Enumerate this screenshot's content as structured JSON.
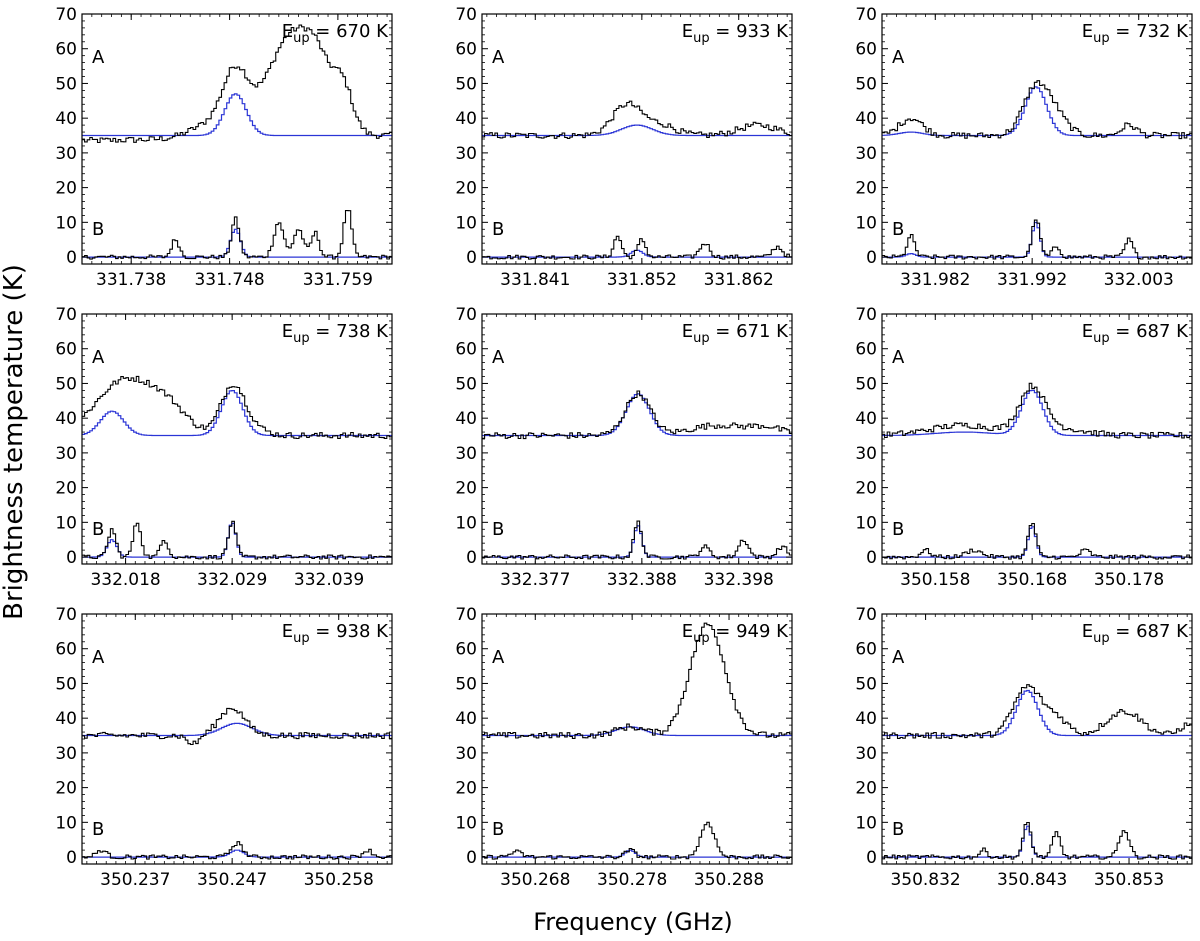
{
  "figure": {
    "ylabel": "Brightness temperature (K)",
    "xlabel": "Frequency (GHz)"
  },
  "colors": {
    "observed": "#000000",
    "model": "#2b35d6",
    "axis": "#000000"
  },
  "chart_data": {
    "type": "line",
    "layout": "3x3 grid of spectra",
    "ylim": [
      -2,
      70
    ],
    "yticks": [
      0,
      10,
      20,
      30,
      40,
      50,
      60,
      70
    ],
    "trace_labels": [
      "A",
      "B"
    ],
    "series_names": [
      "observed spectrum",
      "model"
    ],
    "panels": [
      {
        "eup_prefix": "E",
        "eup_sub": "up",
        "eup_value": " = 670 K",
        "xticks": [
          331.738,
          331.748,
          331.759
        ],
        "xtick_labels": [
          "331.738",
          "331.748",
          "331.759"
        ],
        "xlim": [
          331.733,
          331.7645
        ],
        "baseline_A": 35,
        "model_A": [
          {
            "center": 331.7486,
            "amp": 12,
            "width": 0.0011
          }
        ],
        "observed_A": [
          {
            "center": 331.7486,
            "amp": 17,
            "width": 0.0013
          },
          {
            "center": 331.7545,
            "amp": 30,
            "width": 0.0026
          },
          {
            "center": 331.7595,
            "amp": 12,
            "width": 0.001
          },
          {
            "center": 331.757,
            "amp": 8,
            "width": 0.0012
          },
          {
            "center": 331.746,
            "amp": 4,
            "width": 0.002
          }
        ],
        "observed_A_slope": -1.5,
        "model_B": [
          {
            "center": 331.7486,
            "amp": 8,
            "width": 0.0005
          }
        ],
        "observed_B": [
          {
            "center": 331.7486,
            "amp": 11,
            "width": 0.0004
          },
          {
            "center": 331.7425,
            "amp": 5,
            "width": 0.0004
          },
          {
            "center": 331.753,
            "amp": 10,
            "width": 0.0005
          },
          {
            "center": 331.755,
            "amp": 8,
            "width": 0.0005
          },
          {
            "center": 331.7567,
            "amp": 7,
            "width": 0.0004
          },
          {
            "center": 331.76,
            "amp": 14,
            "width": 0.0004
          }
        ]
      },
      {
        "eup_prefix": "E",
        "eup_sub": "up",
        "eup_value": " = 933 K",
        "xticks": [
          331.841,
          331.852,
          331.862
        ],
        "xtick_labels": [
          "331.841",
          "331.852",
          "331.862"
        ],
        "xlim": [
          331.8355,
          331.8675
        ],
        "baseline_A": 35,
        "model_A": [
          {
            "center": 331.8515,
            "amp": 3,
            "width": 0.0016
          }
        ],
        "observed_A": [
          {
            "center": 331.8505,
            "amp": 9,
            "width": 0.0015
          },
          {
            "center": 331.854,
            "amp": 3,
            "width": 0.0015
          },
          {
            "center": 331.864,
            "amp": 3,
            "width": 0.002
          }
        ],
        "observed_A_slope": 0,
        "model_B": [
          {
            "center": 331.8515,
            "amp": 2,
            "width": 0.0006
          }
        ],
        "observed_B": [
          {
            "center": 331.8495,
            "amp": 6,
            "width": 0.0004
          },
          {
            "center": 331.852,
            "amp": 5,
            "width": 0.0004
          },
          {
            "center": 331.8585,
            "amp": 4,
            "width": 0.0005
          },
          {
            "center": 331.866,
            "amp": 3,
            "width": 0.0005
          }
        ]
      },
      {
        "eup_prefix": "E",
        "eup_sub": "up",
        "eup_value": " = 732 K",
        "xticks": [
          331.982,
          331.992,
          332.003
        ],
        "xtick_labels": [
          "331.982",
          "331.992",
          "332.003"
        ],
        "xlim": [
          331.9765,
          332.0085
        ],
        "baseline_A": 35,
        "model_A": [
          {
            "center": 331.9924,
            "amp": 14,
            "width": 0.0011
          },
          {
            "center": 331.9795,
            "amp": 1,
            "width": 0.0012
          }
        ],
        "observed_A": [
          {
            "center": 331.9924,
            "amp": 14,
            "width": 0.0013
          },
          {
            "center": 331.9945,
            "amp": 5,
            "width": 0.0012
          },
          {
            "center": 331.9795,
            "amp": 5,
            "width": 0.0012
          },
          {
            "center": 332.002,
            "amp": 3,
            "width": 0.0008
          }
        ],
        "observed_A_slope": 0,
        "model_B": [
          {
            "center": 331.9924,
            "amp": 10,
            "width": 0.0004
          },
          {
            "center": 331.9795,
            "amp": 1,
            "width": 0.0005
          }
        ],
        "observed_B": [
          {
            "center": 331.9924,
            "amp": 11,
            "width": 0.0004
          },
          {
            "center": 331.9795,
            "amp": 6,
            "width": 0.0004
          },
          {
            "center": 331.9945,
            "amp": 3,
            "width": 0.0004
          },
          {
            "center": 332.002,
            "amp": 5,
            "width": 0.0004
          }
        ]
      },
      {
        "eup_prefix": "E",
        "eup_sub": "up",
        "eup_value": " = 738 K",
        "xticks": [
          332.018,
          332.029,
          332.039
        ],
        "xtick_labels": [
          "332.018",
          "332.029",
          "332.039"
        ],
        "xlim": [
          332.0135,
          332.0455
        ],
        "baseline_A": 35,
        "model_A": [
          {
            "center": 332.0166,
            "amp": 7,
            "width": 0.0012
          },
          {
            "center": 332.029,
            "amp": 13,
            "width": 0.0011
          }
        ],
        "observed_A": [
          {
            "center": 332.018,
            "amp": 16,
            "width": 0.003
          },
          {
            "center": 332.0225,
            "amp": 6,
            "width": 0.002
          },
          {
            "center": 332.029,
            "amp": 13,
            "width": 0.0012
          },
          {
            "center": 332.0305,
            "amp": 3,
            "width": 0.0015
          }
        ],
        "observed_A_slope": 0,
        "model_B": [
          {
            "center": 332.0166,
            "amp": 5,
            "width": 0.0005
          },
          {
            "center": 332.029,
            "amp": 10,
            "width": 0.0004
          }
        ],
        "observed_B": [
          {
            "center": 332.0166,
            "amp": 8,
            "width": 0.0004
          },
          {
            "center": 332.0192,
            "amp": 10,
            "width": 0.0004
          },
          {
            "center": 332.022,
            "amp": 5,
            "width": 0.0004
          },
          {
            "center": 332.029,
            "amp": 10,
            "width": 0.0004
          }
        ]
      },
      {
        "eup_prefix": "E",
        "eup_sub": "up",
        "eup_value": " = 671 K",
        "xticks": [
          332.377,
          332.388,
          332.398
        ],
        "xtick_labels": [
          "332.377",
          "332.388",
          "332.398"
        ],
        "xlim": [
          332.3715,
          332.4035
        ],
        "baseline_A": 35,
        "model_A": [
          {
            "center": 332.3876,
            "amp": 12,
            "width": 0.0012
          }
        ],
        "observed_A": [
          {
            "center": 332.3876,
            "amp": 12,
            "width": 0.0013
          },
          {
            "center": 332.396,
            "amp": 3,
            "width": 0.003
          },
          {
            "center": 332.401,
            "amp": 2,
            "width": 0.0015
          }
        ],
        "observed_A_slope": 0,
        "model_B": [
          {
            "center": 332.3876,
            "amp": 9,
            "width": 0.0004
          }
        ],
        "observed_B": [
          {
            "center": 332.3876,
            "amp": 10,
            "width": 0.0004
          },
          {
            "center": 332.3945,
            "amp": 3,
            "width": 0.0005
          },
          {
            "center": 332.3985,
            "amp": 5,
            "width": 0.0005
          },
          {
            "center": 332.4025,
            "amp": 3,
            "width": 0.0005
          }
        ]
      },
      {
        "eup_prefix": "E",
        "eup_sub": "up",
        "eup_value": " = 687 K",
        "xticks": [
          350.158,
          350.168,
          350.178
        ],
        "xtick_labels": [
          "350.158",
          "350.168",
          "350.178"
        ],
        "xlim": [
          350.1525,
          350.1845
        ],
        "baseline_A": 35,
        "model_A": [
          {
            "center": 350.168,
            "amp": 13,
            "width": 0.0011
          },
          {
            "center": 350.161,
            "amp": 1,
            "width": 0.003
          }
        ],
        "observed_A": [
          {
            "center": 350.168,
            "amp": 13,
            "width": 0.0013
          },
          {
            "center": 350.161,
            "amp": 3,
            "width": 0.0035
          },
          {
            "center": 350.171,
            "amp": 2,
            "width": 0.0025
          }
        ],
        "observed_A_slope": 0,
        "model_B": [
          {
            "center": 350.168,
            "amp": 9,
            "width": 0.0004
          }
        ],
        "observed_B": [
          {
            "center": 350.168,
            "amp": 10,
            "width": 0.0004
          },
          {
            "center": 350.157,
            "amp": 2,
            "width": 0.0005
          },
          {
            "center": 350.162,
            "amp": 2,
            "width": 0.0008
          },
          {
            "center": 350.1735,
            "amp": 2,
            "width": 0.0005
          }
        ]
      },
      {
        "eup_prefix": "E",
        "eup_sub": "up",
        "eup_value": " = 938 K",
        "xticks": [
          350.237,
          350.247,
          350.258
        ],
        "xtick_labels": [
          "350.237",
          "350.247",
          "350.258"
        ],
        "xlim": [
          350.2315,
          350.2635
        ],
        "baseline_A": 35,
        "model_A": [
          {
            "center": 350.2475,
            "amp": 3.5,
            "width": 0.0016
          }
        ],
        "observed_A": [
          {
            "center": 350.247,
            "amp": 8,
            "width": 0.0013
          },
          {
            "center": 350.243,
            "amp": -2.5,
            "width": 0.0006
          }
        ],
        "observed_A_slope": 0,
        "model_B": [
          {
            "center": 350.2475,
            "amp": 2,
            "width": 0.0007
          }
        ],
        "observed_B": [
          {
            "center": 350.2475,
            "amp": 4,
            "width": 0.0006
          },
          {
            "center": 350.2335,
            "amp": 2,
            "width": 0.0005
          },
          {
            "center": 350.261,
            "amp": 2,
            "width": 0.0005
          }
        ]
      },
      {
        "eup_prefix": "E",
        "eup_sub": "up",
        "eup_value": " = 949 K",
        "xticks": [
          350.268,
          350.278,
          350.288
        ],
        "xtick_labels": [
          "350.268",
          "350.278",
          "350.288"
        ],
        "xlim": [
          350.2625,
          350.2945
        ],
        "baseline_A": 35,
        "model_A": [
          {
            "center": 350.2778,
            "amp": 2.5,
            "width": 0.0015
          }
        ],
        "observed_A": [
          {
            "center": 350.2778,
            "amp": 2.5,
            "width": 0.0015
          },
          {
            "center": 350.2858,
            "amp": 32,
            "width": 0.0018
          }
        ],
        "observed_A_slope": 0,
        "model_B": [
          {
            "center": 350.2778,
            "amp": 2,
            "width": 0.0005
          }
        ],
        "observed_B": [
          {
            "center": 350.2778,
            "amp": 2,
            "width": 0.0005
          },
          {
            "center": 350.2858,
            "amp": 10,
            "width": 0.0007
          },
          {
            "center": 350.266,
            "amp": 1.5,
            "width": 0.0006
          }
        ]
      },
      {
        "eup_prefix": "E",
        "eup_sub": "up",
        "eup_value": " = 687 K",
        "xticks": [
          350.832,
          350.843,
          350.853
        ],
        "xtick_labels": [
          "350.832",
          "350.843",
          "350.853"
        ],
        "xlim": [
          350.8275,
          350.8595
        ],
        "baseline_A": 35,
        "model_A": [
          {
            "center": 350.8425,
            "amp": 13,
            "width": 0.0011
          }
        ],
        "observed_A": [
          {
            "center": 350.8425,
            "amp": 14,
            "width": 0.0014
          },
          {
            "center": 350.8455,
            "amp": 5,
            "width": 0.0012
          },
          {
            "center": 350.8525,
            "amp": 7,
            "width": 0.0018
          },
          {
            "center": 350.859,
            "amp": 3,
            "width": 0.0008
          }
        ],
        "observed_A_slope": 0,
        "model_B": [
          {
            "center": 350.8425,
            "amp": 9,
            "width": 0.0004
          }
        ],
        "observed_B": [
          {
            "center": 350.8425,
            "amp": 10,
            "width": 0.0004
          },
          {
            "center": 350.8455,
            "amp": 7,
            "width": 0.0004
          },
          {
            "center": 350.8525,
            "amp": 8,
            "width": 0.0005
          },
          {
            "center": 350.838,
            "amp": 2,
            "width": 0.0004
          }
        ]
      }
    ]
  }
}
